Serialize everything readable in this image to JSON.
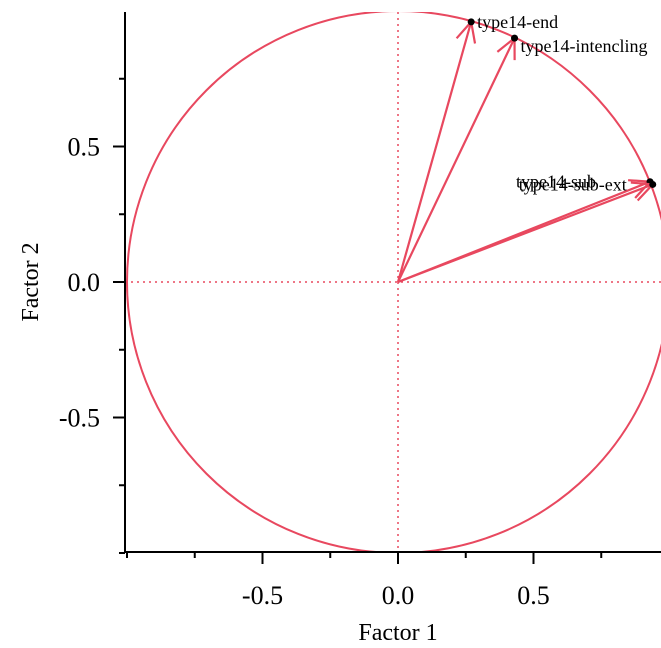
{
  "chart_data": {
    "type": "scatter",
    "subtype": "correlation-circle",
    "title": "",
    "xlabel": "Factor 1",
    "ylabel": "Factor 2",
    "xlim": [
      -1.0,
      1.0
    ],
    "ylim": [
      -1.0,
      1.0
    ],
    "x_ticks": [
      {
        "value": -0.5,
        "label": "-0.5"
      },
      {
        "value": 0.0,
        "label": "0.0"
      },
      {
        "value": 0.5,
        "label": "0.5"
      }
    ],
    "y_ticks": [
      {
        "value": 0.5,
        "label": "0.5"
      },
      {
        "value": 0.0,
        "label": "0.0"
      },
      {
        "value": -0.5,
        "label": "-0.5"
      }
    ],
    "grid": false,
    "reference_lines": [
      "x=0",
      "y=0"
    ],
    "unit_circle": true,
    "colors": {
      "vectors": "#e8485f",
      "circle": "#e8485f",
      "refline": "#e8485f",
      "points": "#000000"
    },
    "vectors": [
      {
        "label": "type14-end",
        "x": 0.27,
        "y": 0.96
      },
      {
        "label": "type14-intencling",
        "x": 0.43,
        "y": 0.9
      },
      {
        "label": "type14-sub",
        "x": 0.93,
        "y": 0.37
      },
      {
        "label": "type14-sub-ext",
        "x": 0.94,
        "y": 0.36
      }
    ]
  }
}
